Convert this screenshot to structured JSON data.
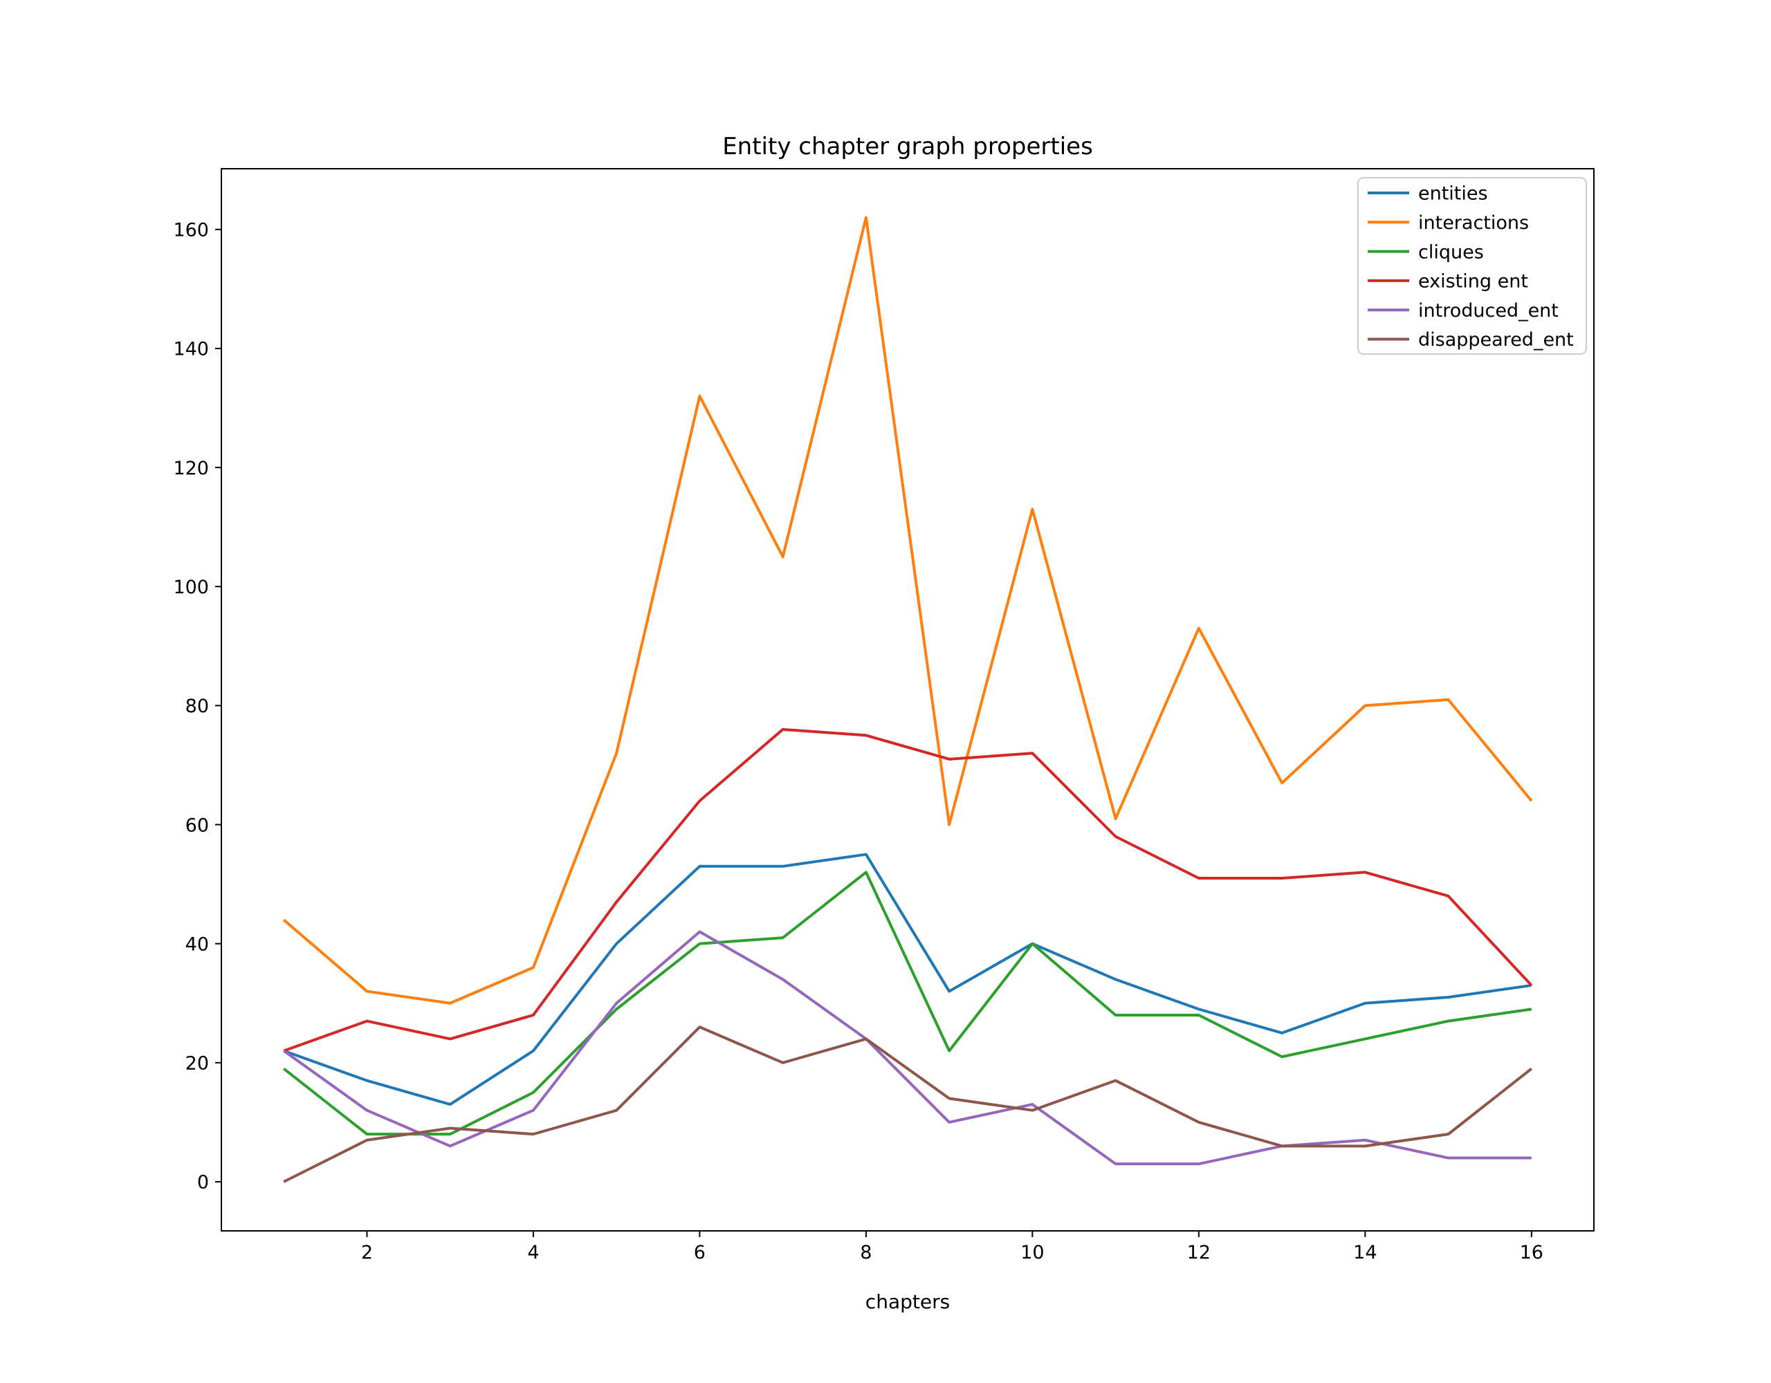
{
  "chart_data": {
    "type": "line",
    "title": "Entity chapter graph properties",
    "xlabel": "chapters",
    "ylabel": "",
    "x": [
      1,
      2,
      3,
      4,
      5,
      6,
      7,
      8,
      9,
      10,
      11,
      12,
      13,
      14,
      15,
      16
    ],
    "series": [
      {
        "name": "entities",
        "color": "#1f77b4",
        "values": [
          22,
          17,
          13,
          22,
          40,
          53,
          53,
          55,
          32,
          40,
          34,
          29,
          25,
          30,
          31,
          33
        ]
      },
      {
        "name": "interactions",
        "color": "#ff7f0e",
        "values": [
          44,
          32,
          30,
          36,
          72,
          132,
          105,
          162,
          60,
          113,
          61,
          93,
          67,
          80,
          81,
          64
        ]
      },
      {
        "name": "cliques",
        "color": "#2ca02c",
        "values": [
          19,
          8,
          8,
          15,
          29,
          40,
          41,
          52,
          22,
          40,
          28,
          28,
          21,
          24,
          27,
          29
        ]
      },
      {
        "name": "existing ent",
        "color": "#d62728",
        "values": [
          22,
          27,
          24,
          28,
          47,
          64,
          76,
          75,
          71,
          72,
          58,
          51,
          51,
          52,
          48,
          33
        ]
      },
      {
        "name": "introduced_ent",
        "color": "#9467bd",
        "values": [
          22,
          12,
          6,
          12,
          30,
          42,
          34,
          24,
          10,
          13,
          3,
          3,
          6,
          7,
          4,
          4
        ]
      },
      {
        "name": "disappeared_ent",
        "color": "#8c564b",
        "values": [
          0,
          7,
          9,
          8,
          12,
          26,
          20,
          24,
          14,
          12,
          17,
          10,
          6,
          6,
          8,
          19
        ]
      }
    ],
    "xticks": [
      "2",
      "4",
      "6",
      "8",
      "10",
      "12",
      "14",
      "16"
    ],
    "xtick_values": [
      2,
      4,
      6,
      8,
      10,
      12,
      14,
      16
    ],
    "yticks": [
      "0",
      "20",
      "40",
      "60",
      "80",
      "100",
      "120",
      "140",
      "160"
    ],
    "ytick_values": [
      0,
      20,
      40,
      60,
      80,
      100,
      120,
      140,
      160
    ],
    "xlim": [
      0.25,
      16.75
    ],
    "ylim": [
      -8.25,
      170.2
    ],
    "grid": false,
    "legend_position": "upper right",
    "axis_color": "#000000",
    "legend_border_color": "#cccccc"
  }
}
